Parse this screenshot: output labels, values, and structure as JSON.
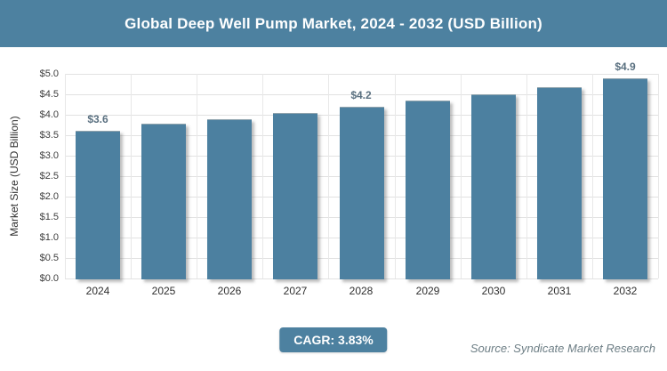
{
  "header": {
    "title": "Global Deep Well Pump Market, 2024 - 2032 (USD Billion)"
  },
  "chart_data": {
    "type": "bar",
    "title": "Global Deep Well Pump Market, 2024 - 2032 (USD Billion)",
    "categories": [
      "2024",
      "2025",
      "2026",
      "2027",
      "2028",
      "2029",
      "2030",
      "2031",
      "2032"
    ],
    "values": [
      3.6,
      3.78,
      3.9,
      4.05,
      4.2,
      4.35,
      4.5,
      4.68,
      4.9
    ],
    "point_labels": [
      "$3.6",
      "",
      "",
      "",
      "$4.2",
      "",
      "",
      "",
      "$4.9"
    ],
    "xlabel": "",
    "ylabel": "Market Size (USD Billion)",
    "ylim": [
      0,
      5
    ],
    "yticks": [
      "$0.0",
      "$0.5",
      "$1.0",
      "$1.5",
      "$2.0",
      "$2.5",
      "$3.0",
      "$3.5",
      "$4.0",
      "$4.5",
      "$5.0"
    ],
    "grid": true,
    "legend": "none"
  },
  "footer": {
    "cagr_label": "CAGR: 3.83%",
    "source": "Source: Syndicate Market Research"
  },
  "colors": {
    "accent": "#4d81a0",
    "bar": "#4c80a0",
    "gridline": "#e2e2e2",
    "axis_text": "#3d3d3d",
    "bar_label_text": "#5a7080",
    "source_text": "#6d7e85"
  }
}
